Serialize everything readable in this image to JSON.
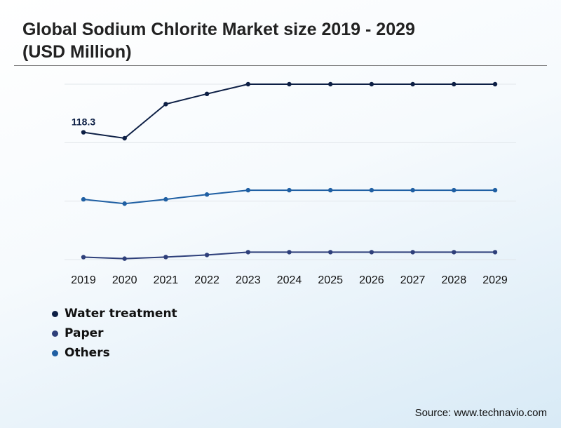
{
  "title": "Global Sodium Chlorite Market size 2019 - 2029 (USD Million)",
  "source": "Source: www.technavio.com",
  "chart_data": {
    "type": "line",
    "x": [
      "2019",
      "2020",
      "2021",
      "2022",
      "2023",
      "2024",
      "2025",
      "2026",
      "2027",
      "2028",
      "2029"
    ],
    "series": [
      {
        "name": "Water treatment",
        "color": "#0d1f45",
        "values": [
          118.3,
          112.8,
          144.5,
          154.0,
          163.0,
          163.0,
          163.0,
          163.0,
          163.0,
          163.0,
          163.0
        ],
        "labels": [
          "118.3",
          "",
          "",
          "",
          "",
          "",
          "",
          "",
          "",
          "",
          ""
        ]
      },
      {
        "name": "Paper",
        "color": "#2e3f7a",
        "values": [
          2.3,
          0.9,
          2.4,
          4.3,
          6.9,
          6.9,
          6.9,
          6.9,
          6.9,
          6.9,
          6.9
        ],
        "labels": [
          "",
          "",
          "",
          "",
          "",
          "",
          "",
          "",
          "",
          "",
          ""
        ]
      },
      {
        "name": "Others",
        "color": "#1f5fa3",
        "values": [
          56.0,
          52.0,
          56.0,
          60.5,
          64.5,
          64.5,
          64.5,
          64.5,
          64.5,
          64.5,
          64.5
        ],
        "labels": [
          "",
          "",
          "",
          "",
          "",
          "",
          "",
          "",
          "",
          "",
          ""
        ]
      }
    ],
    "ylim": [
      0,
      163
    ],
    "grid": true,
    "legend_position": "bottom-left"
  }
}
